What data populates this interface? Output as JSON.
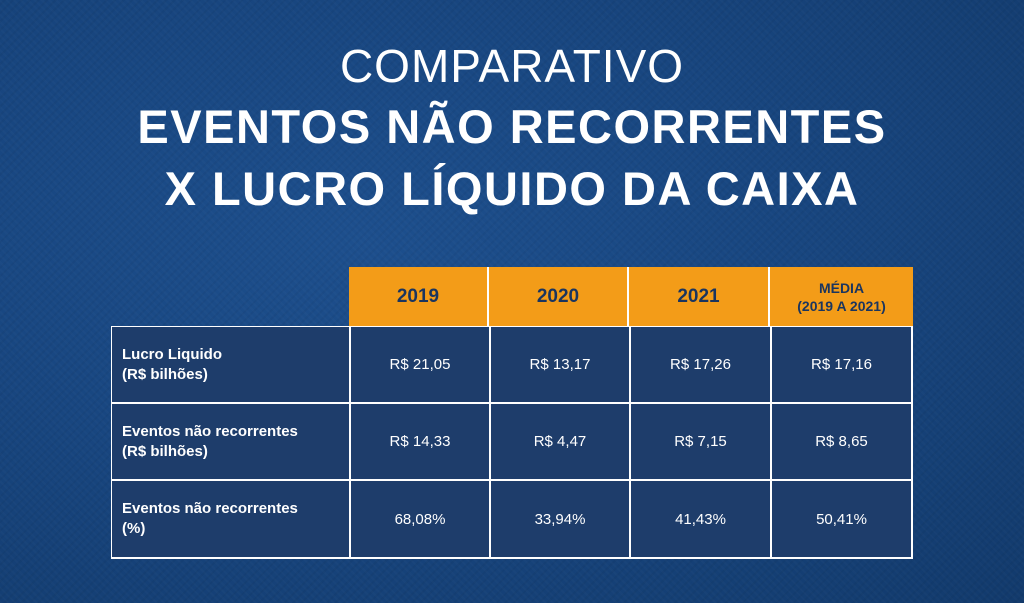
{
  "title": {
    "line1": "COMPARATIVO",
    "line2": "EVENTOS NÃO RECORRENTES",
    "line3": "X LUCRO LÍQUIDO DA CAIXA"
  },
  "colors": {
    "background": "#184680",
    "header": "#f39c18",
    "header_text": "#1a355f",
    "cell": "#1e3d6b",
    "border": "#ffffff"
  },
  "chart_data": {
    "type": "table",
    "columns": [
      "2019",
      "2020",
      "2021"
    ],
    "media_header": {
      "line1": "MÉDIA",
      "line2": "(2019 A 2021)"
    },
    "rows": [
      {
        "label_line1": "Lucro Liquido",
        "label_line2": "(R$ bilhões)",
        "values": [
          "R$ 21,05",
          "R$ 13,17",
          "R$ 17,26",
          "R$ 17,16"
        ]
      },
      {
        "label_line1": "Eventos não recorrentes",
        "label_line2": "(R$ bilhões)",
        "values": [
          "R$ 14,33",
          "R$ 4,47",
          "R$ 7,15",
          "R$ 8,65"
        ]
      },
      {
        "label_line1": "Eventos não recorrentes",
        "label_line2": "(%)",
        "values": [
          "68,08%",
          "33,94%",
          "41,43%",
          "50,41%"
        ]
      }
    ]
  }
}
